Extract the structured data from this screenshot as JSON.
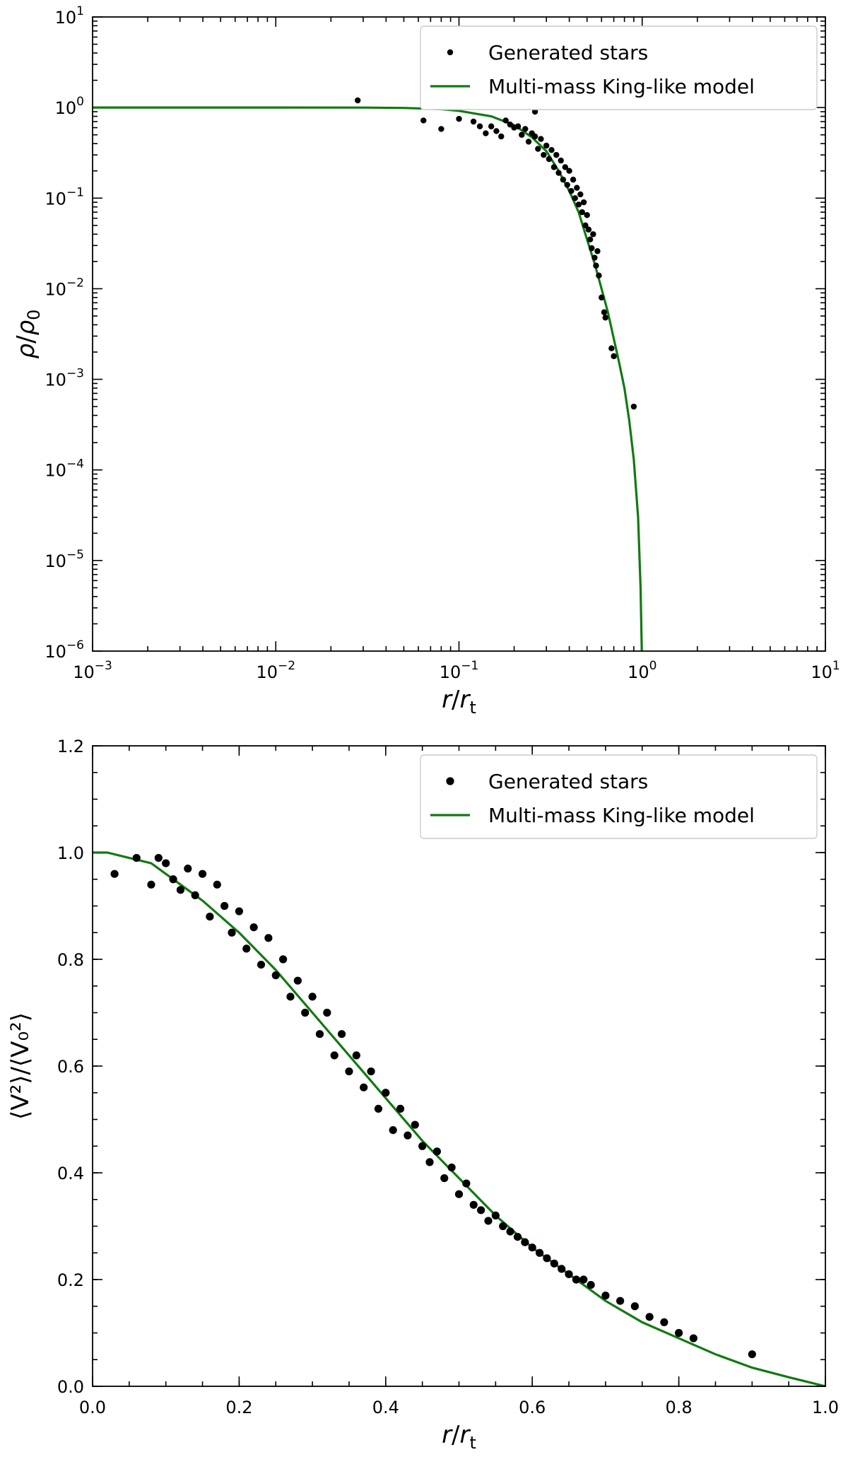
{
  "chart_data": [
    {
      "type": "scatter",
      "xscale": "log",
      "yscale": "log",
      "xlim": [
        0.001,
        10
      ],
      "ylim": [
        1e-06,
        10
      ],
      "xlabel": {
        "var": "r",
        "sub": "t"
      },
      "ylabel": {
        "var": "ρ",
        "sub": "0"
      },
      "xticks": [
        {
          "v": 0.001,
          "label": "10",
          "exp": "−3"
        },
        {
          "v": 0.01,
          "label": "10",
          "exp": "−2"
        },
        {
          "v": 0.1,
          "label": "10",
          "exp": "−1"
        },
        {
          "v": 1,
          "label": "10",
          "exp": "0"
        },
        {
          "v": 10,
          "label": "10",
          "exp": "1"
        }
      ],
      "yticks": [
        {
          "v": 1e-06,
          "label": "10",
          "exp": "−6"
        },
        {
          "v": 1e-05,
          "label": "10",
          "exp": "−5"
        },
        {
          "v": 0.0001,
          "label": "10",
          "exp": "−4"
        },
        {
          "v": 0.001,
          "label": "10",
          "exp": "−3"
        },
        {
          "v": 0.01,
          "label": "10",
          "exp": "−2"
        },
        {
          "v": 0.1,
          "label": "10",
          "exp": "−1"
        },
        {
          "v": 1,
          "label": "10",
          "exp": "0"
        },
        {
          "v": 10,
          "label": "10",
          "exp": "1"
        }
      ],
      "legend": {
        "location": "top-right",
        "entries": [
          {
            "name": "Generated stars",
            "kind": "marker"
          },
          {
            "name": "Multi-mass King-like model",
            "kind": "line"
          }
        ]
      },
      "series": [
        {
          "name": "Generated stars",
          "points": [
            [
              0.028,
              1.2
            ],
            [
              0.064,
              0.72
            ],
            [
              0.08,
              0.58
            ],
            [
              0.1,
              0.75
            ],
            [
              0.12,
              0.7
            ],
            [
              0.13,
              0.62
            ],
            [
              0.14,
              0.52
            ],
            [
              0.15,
              0.62
            ],
            [
              0.16,
              0.55
            ],
            [
              0.17,
              0.48
            ],
            [
              0.18,
              0.72
            ],
            [
              0.19,
              0.65
            ],
            [
              0.2,
              0.6
            ],
            [
              0.21,
              1.05
            ],
            [
              0.21,
              0.62
            ],
            [
              0.22,
              0.5
            ],
            [
              0.23,
              0.58
            ],
            [
              0.24,
              0.42
            ],
            [
              0.25,
              0.52
            ],
            [
              0.26,
              0.9
            ],
            [
              0.26,
              0.48
            ],
            [
              0.27,
              0.35
            ],
            [
              0.28,
              0.45
            ],
            [
              0.29,
              0.3
            ],
            [
              0.3,
              0.38
            ],
            [
              0.31,
              0.27
            ],
            [
              0.32,
              0.34
            ],
            [
              0.33,
              0.22
            ],
            [
              0.34,
              0.3
            ],
            [
              0.35,
              0.19
            ],
            [
              0.36,
              0.26
            ],
            [
              0.37,
              0.16
            ],
            [
              0.38,
              0.22
            ],
            [
              0.39,
              0.14
            ],
            [
              0.4,
              0.2
            ],
            [
              0.41,
              0.12
            ],
            [
              0.42,
              0.16
            ],
            [
              0.43,
              0.1
            ],
            [
              0.44,
              0.13
            ],
            [
              0.45,
              0.085
            ],
            [
              0.46,
              0.11
            ],
            [
              0.47,
              0.07
            ],
            [
              0.48,
              0.09
            ],
            [
              0.49,
              0.05
            ],
            [
              0.5,
              0.065
            ],
            [
              0.51,
              0.045
            ],
            [
              0.52,
              0.035
            ],
            [
              0.53,
              0.028
            ],
            [
              0.54,
              0.04
            ],
            [
              0.55,
              0.022
            ],
            [
              0.56,
              0.018
            ],
            [
              0.57,
              0.026
            ],
            [
              0.58,
              0.014
            ],
            [
              0.6,
              0.008
            ],
            [
              0.62,
              0.0055
            ],
            [
              0.63,
              0.0048
            ],
            [
              0.68,
              0.0022
            ],
            [
              0.7,
              0.0018
            ],
            [
              0.9,
              0.0005
            ]
          ]
        },
        {
          "name": "Multi-mass King-like model",
          "points": [
            [
              0.001,
              1.0
            ],
            [
              0.01,
              1.0
            ],
            [
              0.03,
              0.999
            ],
            [
              0.05,
              0.99
            ],
            [
              0.08,
              0.96
            ],
            [
              0.1,
              0.92
            ],
            [
              0.15,
              0.8
            ],
            [
              0.2,
              0.64
            ],
            [
              0.25,
              0.47
            ],
            [
              0.3,
              0.33
            ],
            [
              0.35,
              0.2
            ],
            [
              0.4,
              0.12
            ],
            [
              0.45,
              0.07
            ],
            [
              0.5,
              0.035
            ],
            [
              0.55,
              0.019
            ],
            [
              0.6,
              0.01
            ],
            [
              0.65,
              0.0055
            ],
            [
              0.7,
              0.0028
            ],
            [
              0.75,
              0.0015
            ],
            [
              0.8,
              0.0008
            ],
            [
              0.85,
              0.00035
            ],
            [
              0.9,
              0.00013
            ],
            [
              0.95,
              3e-05
            ],
            [
              0.98,
              5e-06
            ],
            [
              0.995,
              1e-06
            ]
          ]
        }
      ]
    },
    {
      "type": "scatter",
      "xscale": "linear",
      "yscale": "linear",
      "xlim": [
        0.0,
        1.0
      ],
      "ylim": [
        0.0,
        1.2
      ],
      "xlabel": {
        "var": "r",
        "sub": "t"
      },
      "ylabel": {
        "text": "⟨V²⟩/⟨V₀²⟩"
      },
      "xticks": [
        {
          "v": 0.0,
          "label": "0.0"
        },
        {
          "v": 0.2,
          "label": "0.2"
        },
        {
          "v": 0.4,
          "label": "0.4"
        },
        {
          "v": 0.6,
          "label": "0.6"
        },
        {
          "v": 0.8,
          "label": "0.8"
        },
        {
          "v": 1.0,
          "label": "1.0"
        }
      ],
      "yticks": [
        {
          "v": 0.0,
          "label": "0.0"
        },
        {
          "v": 0.2,
          "label": "0.2"
        },
        {
          "v": 0.4,
          "label": "0.4"
        },
        {
          "v": 0.6,
          "label": "0.6"
        },
        {
          "v": 0.8,
          "label": "0.8"
        },
        {
          "v": 1.0,
          "label": "1.0"
        },
        {
          "v": 1.2,
          "label": "1.2"
        }
      ],
      "legend": {
        "location": "top-right",
        "entries": [
          {
            "name": "Generated stars",
            "kind": "marker"
          },
          {
            "name": "Multi-mass King-like model",
            "kind": "line"
          }
        ]
      },
      "series": [
        {
          "name": "Generated stars",
          "points": [
            [
              0.03,
              0.96
            ],
            [
              0.06,
              0.99
            ],
            [
              0.08,
              0.94
            ],
            [
              0.09,
              0.99
            ],
            [
              0.1,
              0.98
            ],
            [
              0.11,
              0.95
            ],
            [
              0.12,
              0.93
            ],
            [
              0.13,
              0.97
            ],
            [
              0.14,
              0.92
            ],
            [
              0.15,
              0.96
            ],
            [
              0.16,
              0.88
            ],
            [
              0.17,
              0.94
            ],
            [
              0.18,
              0.9
            ],
            [
              0.19,
              0.85
            ],
            [
              0.2,
              0.89
            ],
            [
              0.21,
              0.82
            ],
            [
              0.22,
              0.86
            ],
            [
              0.23,
              0.79
            ],
            [
              0.24,
              0.84
            ],
            [
              0.25,
              0.77
            ],
            [
              0.26,
              0.8
            ],
            [
              0.27,
              0.73
            ],
            [
              0.28,
              0.76
            ],
            [
              0.29,
              0.7
            ],
            [
              0.3,
              0.73
            ],
            [
              0.31,
              0.66
            ],
            [
              0.32,
              0.7
            ],
            [
              0.33,
              0.62
            ],
            [
              0.34,
              0.66
            ],
            [
              0.35,
              0.59
            ],
            [
              0.36,
              0.62
            ],
            [
              0.37,
              0.56
            ],
            [
              0.38,
              0.59
            ],
            [
              0.39,
              0.52
            ],
            [
              0.4,
              0.55
            ],
            [
              0.41,
              0.48
            ],
            [
              0.42,
              0.52
            ],
            [
              0.43,
              0.47
            ],
            [
              0.44,
              0.49
            ],
            [
              0.45,
              0.45
            ],
            [
              0.46,
              0.42
            ],
            [
              0.47,
              0.44
            ],
            [
              0.48,
              0.39
            ],
            [
              0.49,
              0.41
            ],
            [
              0.5,
              0.36
            ],
            [
              0.51,
              0.38
            ],
            [
              0.52,
              0.34
            ],
            [
              0.53,
              0.33
            ],
            [
              0.54,
              0.31
            ],
            [
              0.55,
              0.32
            ],
            [
              0.56,
              0.3
            ],
            [
              0.57,
              0.29
            ],
            [
              0.58,
              0.28
            ],
            [
              0.59,
              0.27
            ],
            [
              0.6,
              0.26
            ],
            [
              0.61,
              0.25
            ],
            [
              0.62,
              0.24
            ],
            [
              0.63,
              0.23
            ],
            [
              0.64,
              0.22
            ],
            [
              0.65,
              0.21
            ],
            [
              0.66,
              0.2
            ],
            [
              0.67,
              0.2
            ],
            [
              0.68,
              0.19
            ],
            [
              0.7,
              0.17
            ],
            [
              0.72,
              0.16
            ],
            [
              0.74,
              0.15
            ],
            [
              0.76,
              0.13
            ],
            [
              0.78,
              0.12
            ],
            [
              0.8,
              0.1
            ],
            [
              0.82,
              0.09
            ],
            [
              0.9,
              0.06
            ]
          ]
        },
        {
          "name": "Multi-mass King-like model",
          "points": [
            [
              0.0,
              1.0
            ],
            [
              0.02,
              1.0
            ],
            [
              0.05,
              0.99
            ],
            [
              0.08,
              0.98
            ],
            [
              0.1,
              0.96
            ],
            [
              0.15,
              0.91
            ],
            [
              0.2,
              0.85
            ],
            [
              0.25,
              0.78
            ],
            [
              0.3,
              0.7
            ],
            [
              0.35,
              0.62
            ],
            [
              0.4,
              0.54
            ],
            [
              0.45,
              0.46
            ],
            [
              0.5,
              0.39
            ],
            [
              0.55,
              0.32
            ],
            [
              0.6,
              0.26
            ],
            [
              0.65,
              0.21
            ],
            [
              0.7,
              0.16
            ],
            [
              0.75,
              0.12
            ],
            [
              0.8,
              0.09
            ],
            [
              0.85,
              0.06
            ],
            [
              0.9,
              0.035
            ],
            [
              0.95,
              0.017
            ],
            [
              1.0,
              0.0
            ]
          ]
        }
      ]
    }
  ]
}
